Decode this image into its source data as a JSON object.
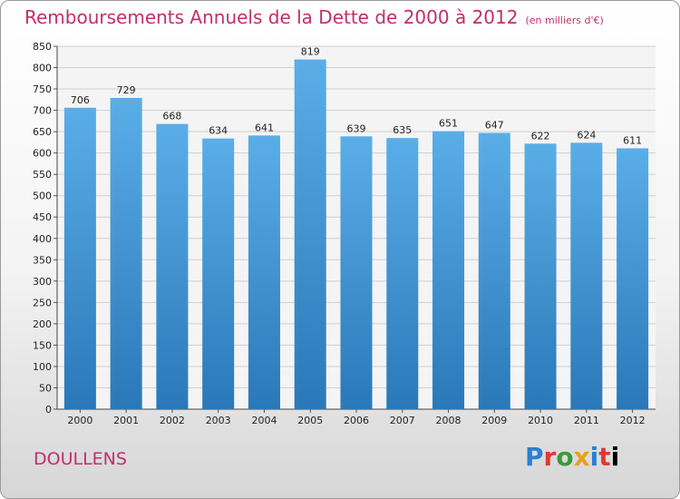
{
  "chart_data": {
    "type": "bar",
    "title": "Remboursements Annuels de la Dette de 2000 à 2012",
    "subtitle": "(en milliers d'€)",
    "categories": [
      "2000",
      "2001",
      "2002",
      "2003",
      "2004",
      "2005",
      "2006",
      "2007",
      "2008",
      "2009",
      "2010",
      "2011",
      "2012"
    ],
    "values": [
      706,
      729,
      668,
      634,
      641,
      819,
      639,
      635,
      651,
      647,
      622,
      624,
      611
    ],
    "ylim": [
      0,
      850
    ],
    "yticks": [
      0,
      50,
      100,
      150,
      200,
      250,
      300,
      350,
      400,
      450,
      500,
      550,
      600,
      650,
      700,
      750,
      800,
      850
    ],
    "grid": true,
    "bar_color_top": "#5aaee8",
    "bar_color_bottom": "#2a78b8"
  },
  "footer": {
    "city": "DOULLENS",
    "logo": "Proxiti"
  }
}
